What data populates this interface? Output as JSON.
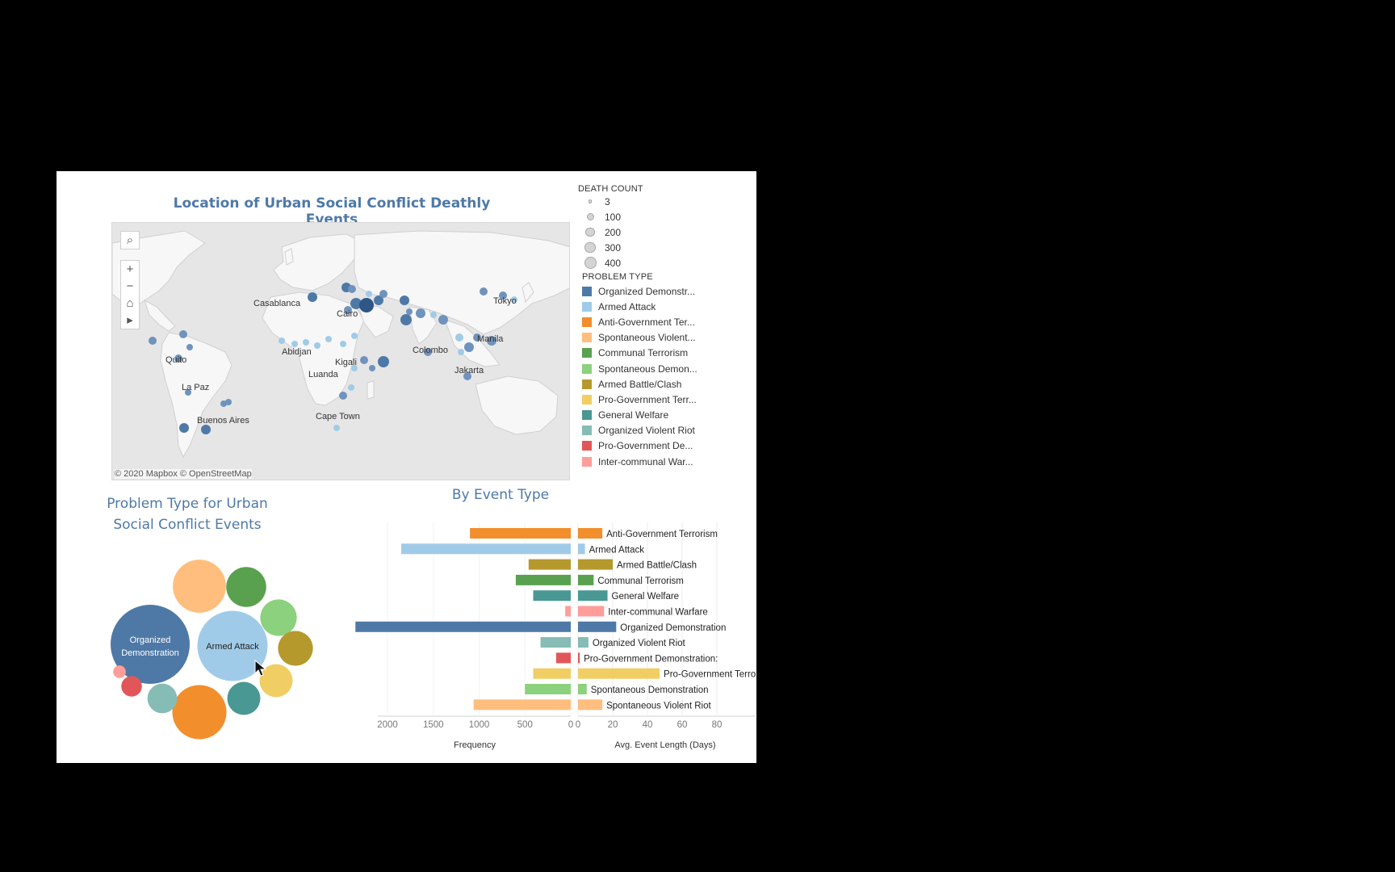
{
  "dashboard": {
    "map_title": "Location of Urban Social Conflict Deathly Events",
    "bubble_title_line1": "Problem Type for Urban",
    "bubble_title_line2": "Social Conflict Events",
    "bars_title": "By Event Type",
    "attribution": "© 2020 Mapbox  © OpenStreetMap"
  },
  "map": {
    "controls": {
      "search": "⌕",
      "zoom_in": "+",
      "zoom_out": "−",
      "home": "⌂",
      "play": "▸"
    },
    "cities": [
      "Casablanca",
      "Cairo",
      "Tokyo",
      "Abidjan",
      "Manila",
      "Colombo",
      "Quito",
      "Kigali",
      "Luanda",
      "Jakarta",
      "La Paz",
      "Buenos Aires",
      "Cape Town"
    ]
  },
  "legend": {
    "death_count_title": "DEATH COUNT",
    "sizes": [
      {
        "label": "3",
        "value": 3
      },
      {
        "label": "100",
        "value": 100
      },
      {
        "label": "200",
        "value": 200
      },
      {
        "label": "300",
        "value": 300
      },
      {
        "label": "400",
        "value": 400
      }
    ],
    "problem_type_title": "PROBLEM TYPE",
    "types": [
      {
        "label": "Organized Demonstr...",
        "color": "#4e79a7"
      },
      {
        "label": "Armed Attack",
        "color": "#a0cbe8"
      },
      {
        "label": "Anti-Government Ter...",
        "color": "#f28e2b"
      },
      {
        "label": "Spontaneous Violent...",
        "color": "#ffbe7d"
      },
      {
        "label": "Communal Terrorism",
        "color": "#59a14f"
      },
      {
        "label": "Spontaneous Demon...",
        "color": "#8cd17d"
      },
      {
        "label": "Armed Battle/Clash",
        "color": "#b6992d"
      },
      {
        "label": "Pro-Government Terr...",
        "color": "#f1ce63"
      },
      {
        "label": "General Welfare",
        "color": "#499894"
      },
      {
        "label": "Organized Violent Riot",
        "color": "#86bcb6"
      },
      {
        "label": "Pro-Government De...",
        "color": "#e15759"
      },
      {
        "label": "Inter-communal War...",
        "color": "#ff9d9a"
      }
    ]
  },
  "bubbles": [
    {
      "label_line1": "Organized",
      "label_line2": "Demonstration",
      "color": "#4e79a7",
      "value": 2350
    },
    {
      "label_line1": "Armed Attack",
      "label_line2": "",
      "color": "#a0cbe8",
      "value": 1850
    },
    {
      "label_line1": "",
      "label_line2": "",
      "color": "#f28e2b",
      "value": 1100
    },
    {
      "label_line1": "",
      "label_line2": "",
      "color": "#ffbe7d",
      "value": 1060
    },
    {
      "label_line1": "",
      "label_line2": "",
      "color": "#59a14f",
      "value": 600
    },
    {
      "label_line1": "",
      "label_line2": "",
      "color": "#8cd17d",
      "value": 500
    },
    {
      "label_line1": "",
      "label_line2": "",
      "color": "#b6992d",
      "value": 460
    },
    {
      "label_line1": "",
      "label_line2": "",
      "color": "#f1ce63",
      "value": 410
    },
    {
      "label_line1": "",
      "label_line2": "",
      "color": "#499894",
      "value": 410
    },
    {
      "label_line1": "",
      "label_line2": "",
      "color": "#86bcb6",
      "value": 330
    },
    {
      "label_line1": "",
      "label_line2": "",
      "color": "#e15759",
      "value": 160
    },
    {
      "label_line1": "",
      "label_line2": "",
      "color": "#ff9d9a",
      "value": 60
    }
  ],
  "chart_data": {
    "type": "bar",
    "title": "By Event Type",
    "categories": [
      "Anti-Government Terrorism",
      "Armed Attack",
      "Armed Battle/Clash",
      "Communal Terrorism",
      "General Welfare",
      "Inter-communal Warfare",
      "Organized Demonstration",
      "Organized Violent Riot",
      "Pro-Government Demonstration:",
      "Pro-Government Terrorism",
      "Spontaneous Demonstration",
      "Spontaneous Violent Riot"
    ],
    "colors": [
      "#f28e2b",
      "#a0cbe8",
      "#b6992d",
      "#59a14f",
      "#499894",
      "#ff9d9a",
      "#4e79a7",
      "#86bcb6",
      "#e15759",
      "#f1ce63",
      "#8cd17d",
      "#ffbe7d"
    ],
    "series": [
      {
        "values": [
          1100,
          1850,
          460,
          600,
          410,
          60,
          2350,
          330,
          160,
          410,
          500,
          1060
        ]
      },
      {
        "values": [
          14,
          4,
          20,
          9,
          17,
          15,
          22,
          6,
          1,
          47,
          5,
          14
        ]
      }
    ],
    "frequency_axis": {
      "xlabel": "Frequency",
      "ticks": [
        2000,
        1500,
        1000,
        500,
        0
      ],
      "xlim": [
        0,
        2400
      ]
    },
    "length_axis": {
      "xlabel": "Avg. Event Length (Days)",
      "ticks": [
        0,
        20,
        40,
        60,
        80
      ],
      "xlim": [
        0,
        90
      ]
    }
  }
}
